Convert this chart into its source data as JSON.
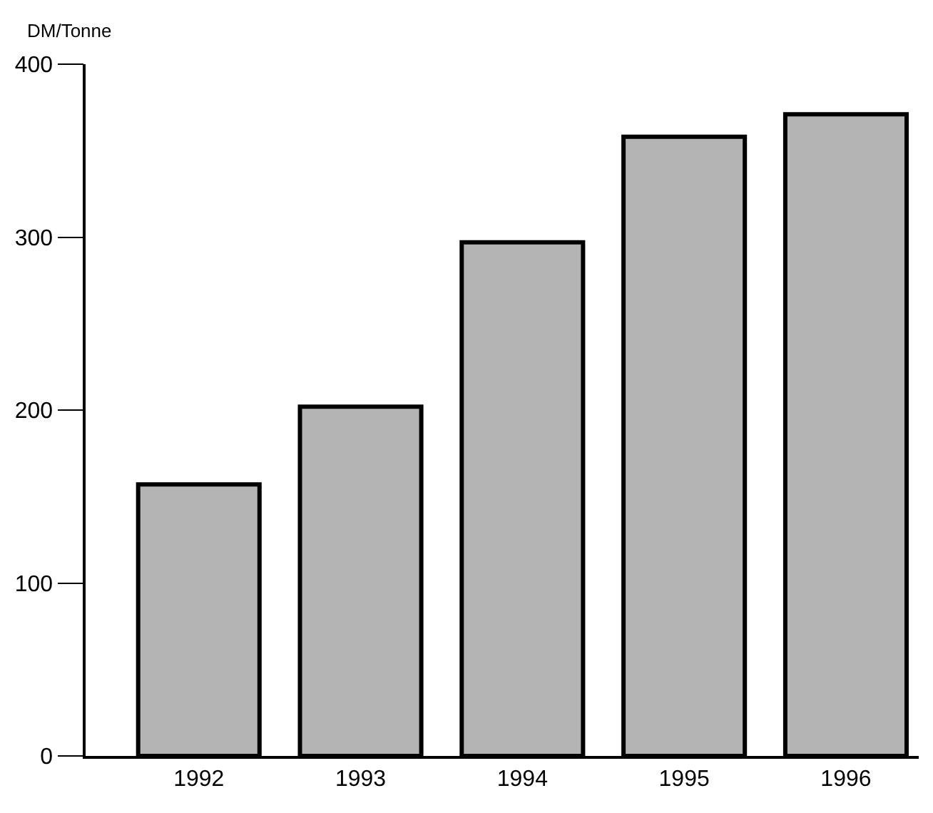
{
  "chart_data": {
    "type": "bar",
    "ylabel": "DM/Tonne",
    "categories": [
      "1992",
      "1993",
      "1994",
      "1995",
      "1996"
    ],
    "values": [
      157,
      202,
      297,
      358,
      371
    ],
    "color": "#b4b4b4",
    "ylim": [
      0,
      400
    ],
    "yticks": [
      0,
      100,
      200,
      300,
      400
    ]
  }
}
